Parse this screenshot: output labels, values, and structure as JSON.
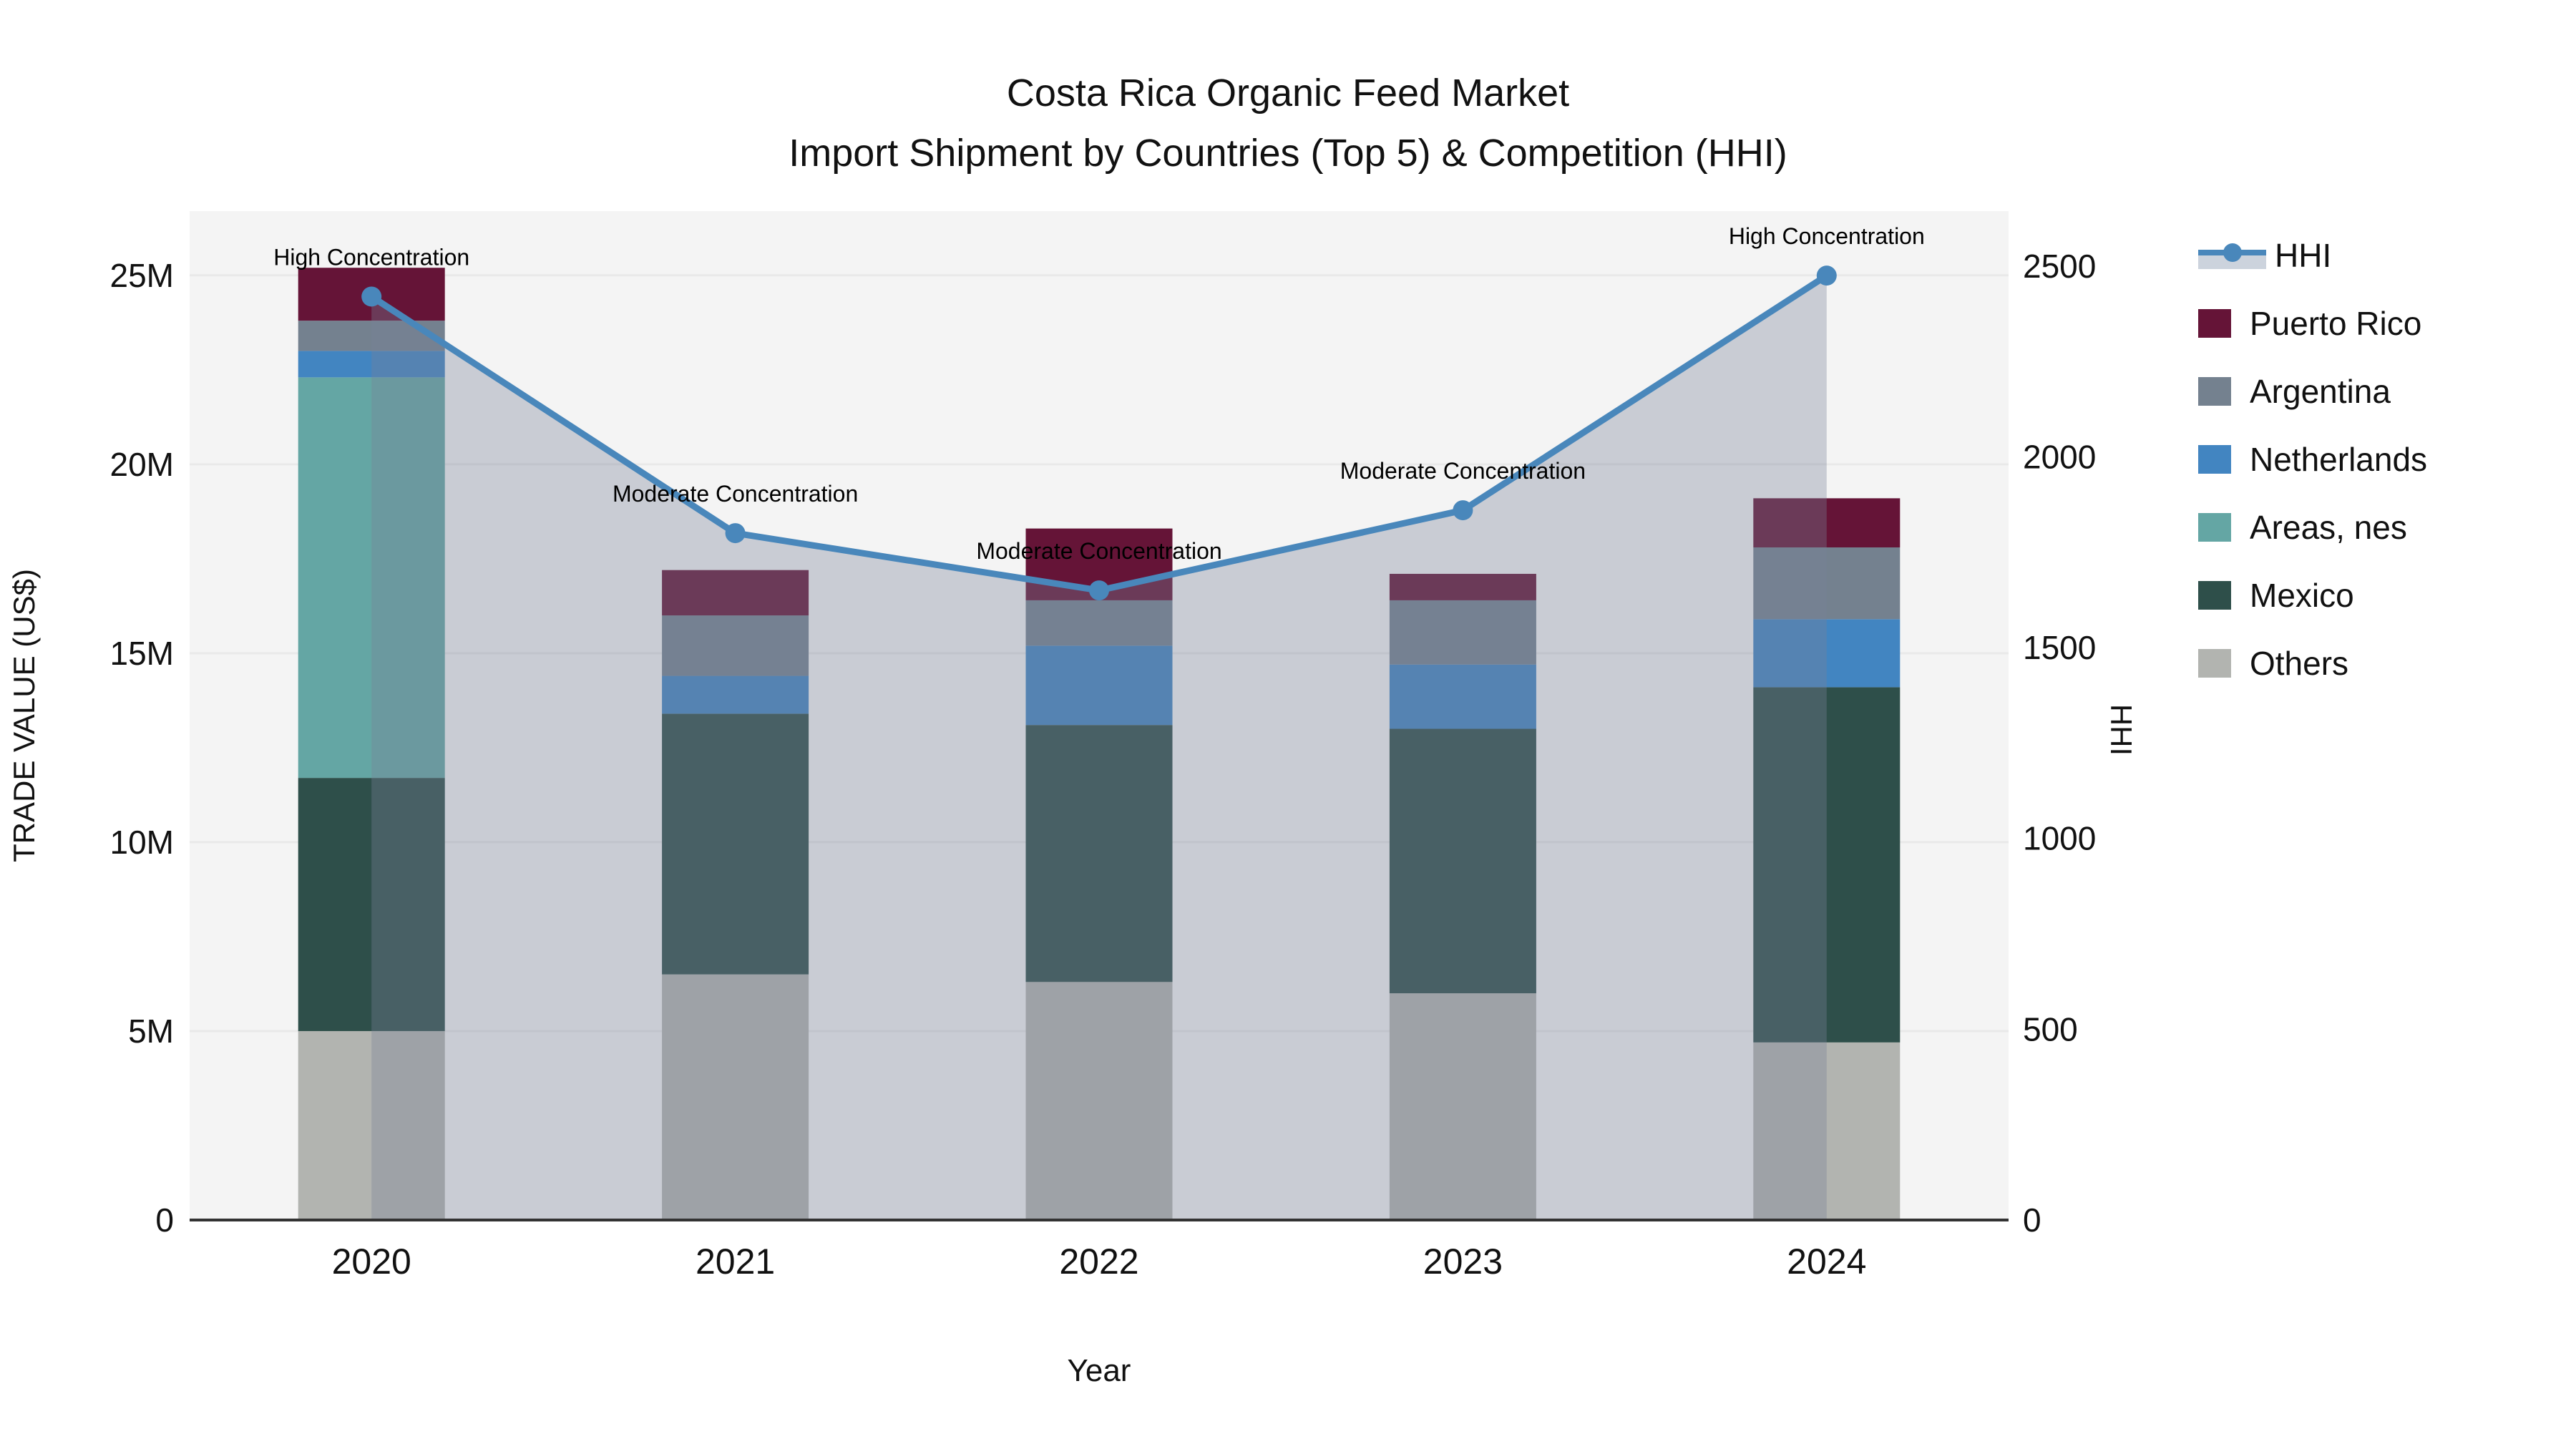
{
  "title": {
    "line1": "Costa Rica Organic Feed Market",
    "line2": "Import Shipment by Countries (Top 5) & Competition (HHI)"
  },
  "axes": {
    "left": {
      "title": "TRADE VALUE (US$)",
      "tick_labels": [
        "0",
        "5M",
        "10M",
        "15M",
        "20M",
        "25M"
      ],
      "tick_values_musd": [
        0,
        5,
        10,
        15,
        20,
        25
      ],
      "max_musd": 26.7
    },
    "right": {
      "title": "HHI",
      "tick_labels": [
        "0",
        "500",
        "1000",
        "1500",
        "2000",
        "2500"
      ],
      "tick_values": [
        0,
        500,
        1000,
        1500,
        2000,
        2500
      ],
      "max": 2644
    },
    "x": {
      "title": "Year",
      "tick_labels": [
        "2020",
        "2021",
        "2022",
        "2023",
        "2024"
      ]
    }
  },
  "legend": {
    "items": [
      {
        "label": "HHI",
        "kind": "line",
        "color": "#4987bb"
      },
      {
        "label": "Puerto Rico",
        "kind": "box",
        "color": "#651437"
      },
      {
        "label": "Argentina",
        "kind": "box",
        "color": "#74818f"
      },
      {
        "label": "Netherlands",
        "kind": "box",
        "color": "#4285c1"
      },
      {
        "label": "Areas, nes",
        "kind": "box",
        "color": "#64a6a4"
      },
      {
        "label": "Mexico",
        "kind": "box",
        "color": "#2e4f4a"
      },
      {
        "label": "Others",
        "kind": "box",
        "color": "#b2b4b0"
      }
    ]
  },
  "chart_data": {
    "type": "combo-stacked-bar-and-line",
    "title": "Costa Rica Organic Feed Market — Import Shipment by Countries (Top 5) & Competition (HHI)",
    "xlabel": "Year",
    "ylabel_left": "TRADE VALUE (US$)",
    "ylabel_right": "HHI",
    "categories": [
      "2020",
      "2021",
      "2022",
      "2023",
      "2024"
    ],
    "bar_stack_bottom_to_top": [
      "Others",
      "Mexico",
      "Areas, nes",
      "Netherlands",
      "Argentina",
      "Puerto Rico"
    ],
    "series": [
      {
        "name": "Others",
        "color": "#b2b4b0",
        "values_musd": [
          5.0,
          6.5,
          6.3,
          6.0,
          4.7
        ]
      },
      {
        "name": "Mexico",
        "color": "#2e4f4a",
        "values_musd": [
          6.7,
          6.9,
          6.8,
          7.0,
          9.4
        ]
      },
      {
        "name": "Areas, nes",
        "color": "#64a6a4",
        "values_musd": [
          10.6,
          0,
          0,
          0,
          0
        ]
      },
      {
        "name": "Netherlands",
        "color": "#4285c1",
        "values_musd": [
          0.7,
          1.0,
          2.1,
          1.7,
          1.8
        ]
      },
      {
        "name": "Argentina",
        "color": "#74818f",
        "values_musd": [
          0.8,
          1.6,
          1.2,
          1.7,
          1.9
        ]
      },
      {
        "name": "Puerto Rico",
        "color": "#651437",
        "values_musd": [
          1.4,
          1.2,
          1.9,
          0.7,
          1.3
        ]
      }
    ],
    "bar_totals_musd": [
      25.2,
      17.2,
      18.3,
      17.1,
      19.1
    ],
    "line_series": {
      "name": "HHI",
      "color": "#4987bb",
      "values": [
        2420,
        1800,
        1650,
        1860,
        2475
      ],
      "area_fill": "rgba(120,129,151,0.35)"
    },
    "annotations": [
      {
        "category": "2020",
        "text": "High Concentration"
      },
      {
        "category": "2021",
        "text": "Moderate Concentration"
      },
      {
        "category": "2022",
        "text": "Moderate Concentration"
      },
      {
        "category": "2023",
        "text": "Moderate Concentration"
      },
      {
        "category": "2024",
        "text": "High Concentration"
      }
    ],
    "ylim_left_musd": [
      0,
      26.7
    ],
    "ylim_right": [
      0,
      2644
    ],
    "grid": "horizontal-5M-steps",
    "legend_position": "right"
  },
  "style": {
    "plot_bg": "#f4f4f4",
    "gridline": "#e9e9e9",
    "axis_line": "#333333",
    "text_color": "#111111",
    "annotation_color": "#000000",
    "hhi_line": "#4987bb",
    "area_fill": "rgba(120,129,151,0.35)"
  }
}
